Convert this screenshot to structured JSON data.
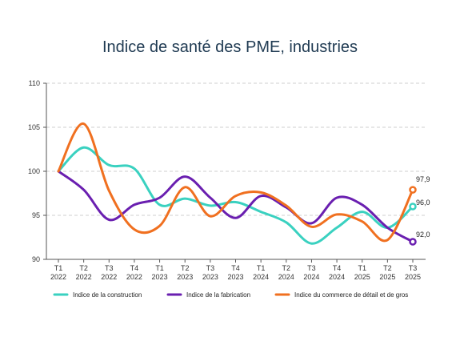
{
  "chart_data": {
    "type": "line",
    "title": "Indice de santé des PME, industries",
    "xlabel": "",
    "ylabel": "",
    "ylim": [
      90,
      110
    ],
    "yticks": [
      90,
      95,
      100,
      105,
      110
    ],
    "grid": "horizontal dashed",
    "legend_position": "bottom",
    "categories": [
      [
        "T1",
        "2022"
      ],
      [
        "T2",
        "2022"
      ],
      [
        "T3",
        "2022"
      ],
      [
        "T4",
        "2022"
      ],
      [
        "T1",
        "2023"
      ],
      [
        "T2",
        "2023"
      ],
      [
        "T3",
        "2023"
      ],
      [
        "T4",
        "2023"
      ],
      [
        "T1",
        "2024"
      ],
      [
        "T2",
        "2024"
      ],
      [
        "T3",
        "2024"
      ],
      [
        "T4",
        "2024"
      ],
      [
        "T1",
        "2025"
      ],
      [
        "T2",
        "2025"
      ],
      [
        "T3",
        "2025"
      ]
    ],
    "series": [
      {
        "name": "Indice de la construction",
        "color": "#3ad1c0",
        "values": [
          100.0,
          102.7,
          100.7,
          100.3,
          96.2,
          96.9,
          96.1,
          96.5,
          95.4,
          94.2,
          91.8,
          93.6,
          95.4,
          93.6,
          96.0
        ],
        "end_label": "96,0"
      },
      {
        "name": "Indice de la fabrication",
        "color": "#6a1fb0",
        "values": [
          100.0,
          97.9,
          94.5,
          96.2,
          97.0,
          99.4,
          97.0,
          94.7,
          97.2,
          95.9,
          94.1,
          97.0,
          96.2,
          93.6,
          92.0
        ],
        "end_label": "92,0"
      },
      {
        "name": "Indice du commerce de détail et de gros",
        "color": "#f07020",
        "values": [
          100.0,
          105.4,
          97.8,
          93.4,
          93.8,
          98.2,
          94.9,
          97.2,
          97.6,
          96.1,
          93.7,
          95.1,
          94.3,
          92.2,
          97.9
        ],
        "end_label": "97,9"
      }
    ]
  }
}
